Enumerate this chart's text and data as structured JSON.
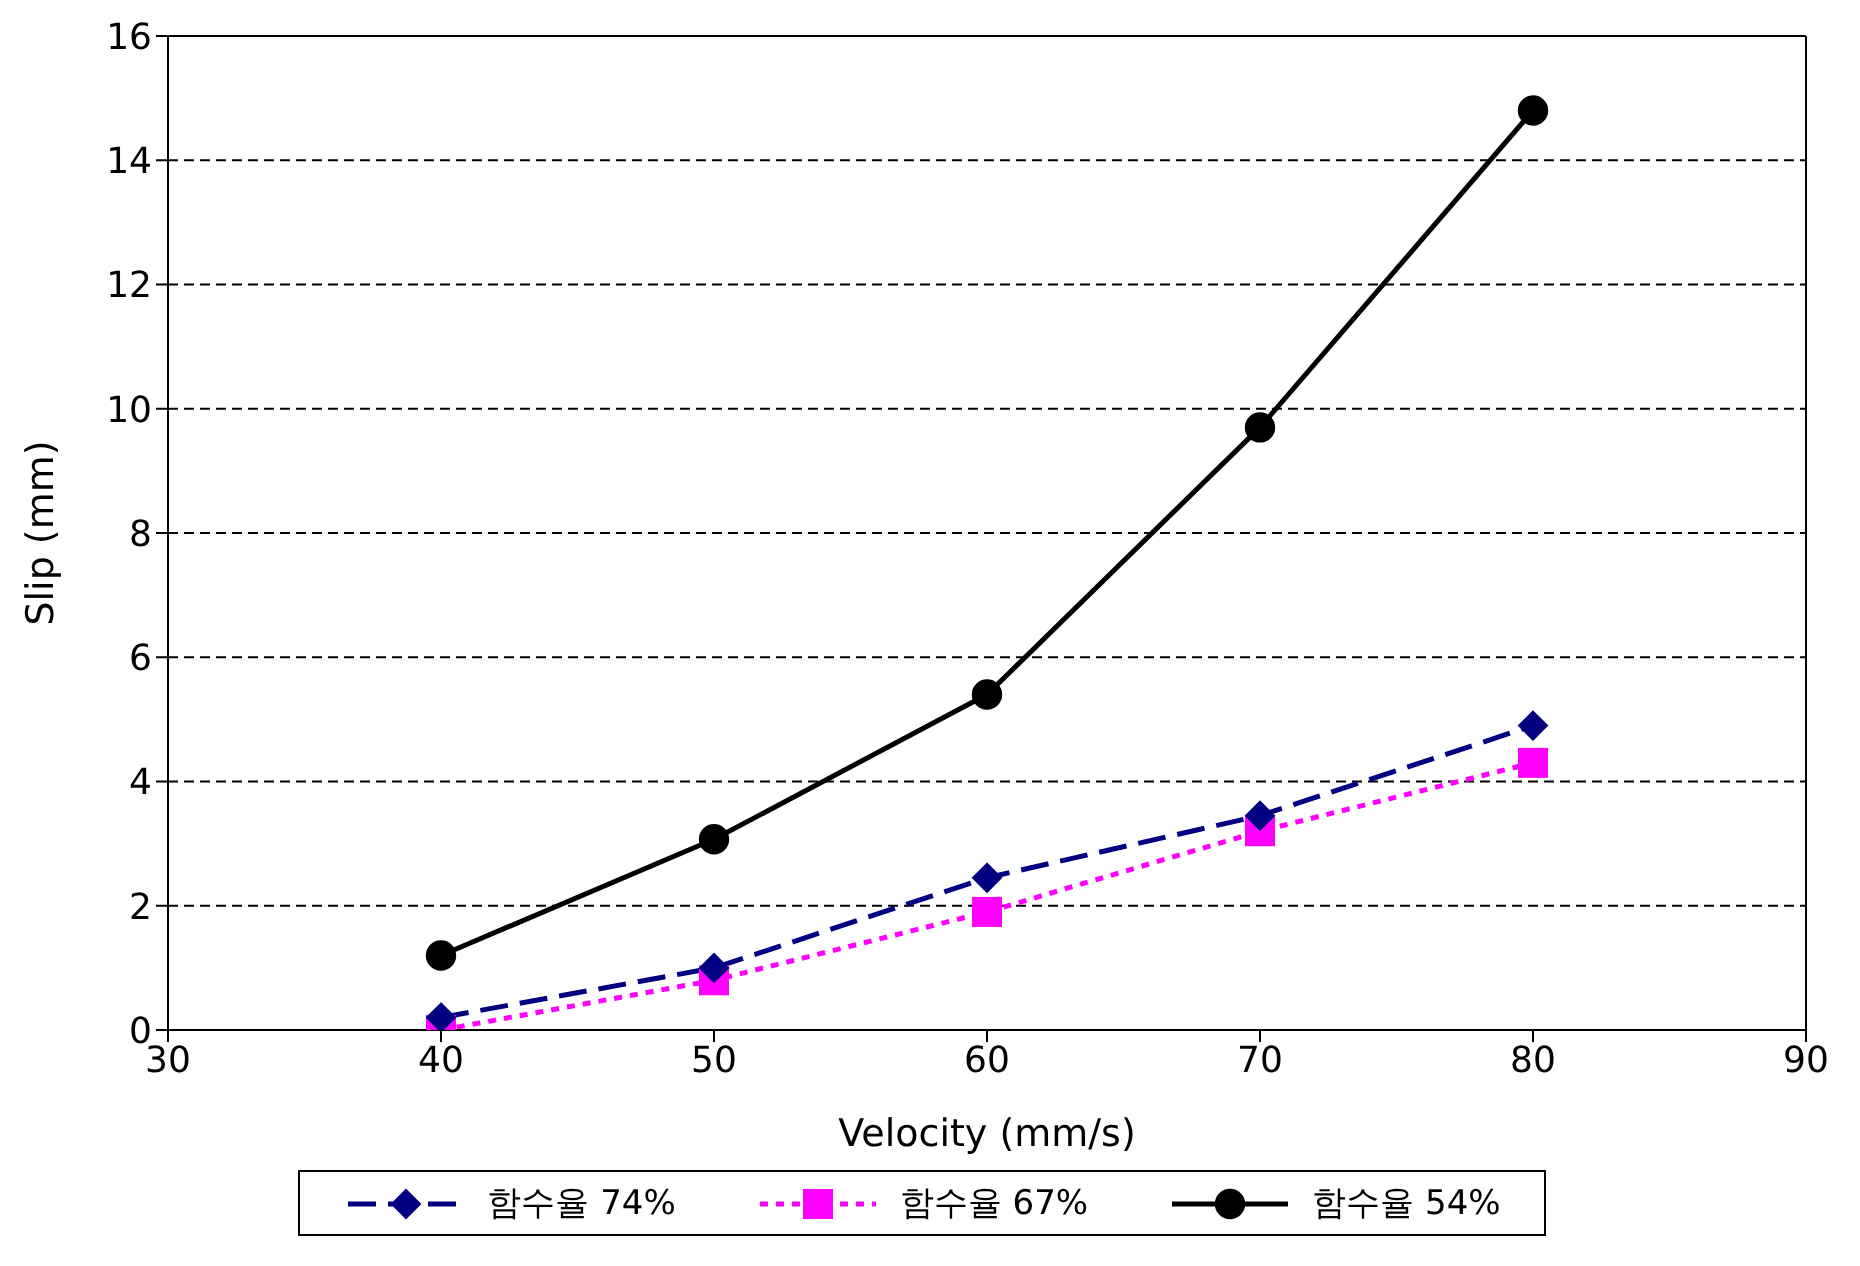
{
  "chart_data": {
    "type": "line",
    "xlabel": "Velocity (mm/s)",
    "ylabel": "Slip (mm)",
    "x": [
      40,
      50,
      60,
      70,
      80
    ],
    "series": [
      {
        "name": "함수율 74%",
        "color": "#000080",
        "marker": "diamond",
        "line_style": "dashed",
        "values": [
          0.2,
          1.0,
          2.45,
          3.45,
          4.9
        ]
      },
      {
        "name": "함수율 67%",
        "color": "#ff00ff",
        "marker": "square",
        "line_style": "dotted",
        "values": [
          0.0,
          0.8,
          1.9,
          3.2,
          4.3
        ]
      },
      {
        "name": "함수율 54%",
        "color": "#000000",
        "marker": "circle",
        "line_style": "solid",
        "values": [
          1.2,
          3.07,
          5.4,
          9.7,
          14.8
        ]
      }
    ],
    "xlim": [
      30,
      90
    ],
    "xticks": [
      30,
      40,
      50,
      60,
      70,
      80,
      90
    ],
    "ylim": [
      0,
      16
    ],
    "yticks": [
      0,
      2,
      4,
      6,
      8,
      10,
      12,
      14,
      16
    ],
    "grid": "y",
    "legend": "bottom"
  }
}
